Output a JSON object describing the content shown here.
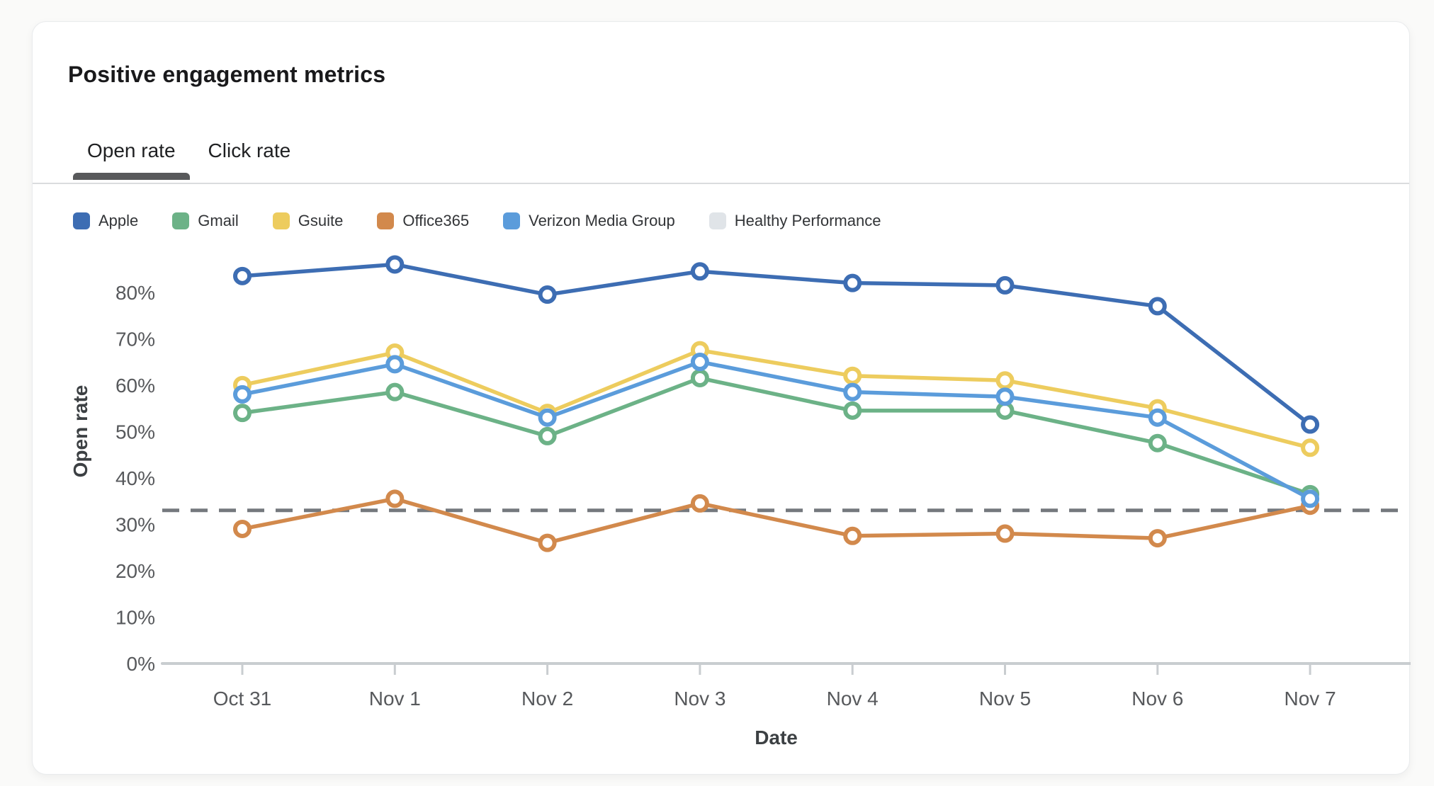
{
  "card": {
    "title": "Positive engagement metrics"
  },
  "tabs": [
    {
      "label": "Open rate",
      "active": true
    },
    {
      "label": "Click rate",
      "active": false
    }
  ],
  "chart_data": {
    "type": "line",
    "title": "Positive engagement metrics",
    "xlabel": "Date",
    "ylabel": "Open rate",
    "categories": [
      "Oct 31",
      "Nov 1",
      "Nov 2",
      "Nov 3",
      "Nov 4",
      "Nov 5",
      "Nov 6",
      "Nov 7"
    ],
    "ylim": [
      0,
      90
    ],
    "y_ticks": [
      0,
      10,
      20,
      30,
      40,
      50,
      60,
      70,
      80
    ],
    "y_tick_suffix": "%",
    "grid": false,
    "legend_position": "top",
    "axis_color": "#c9cdd0",
    "series": [
      {
        "name": "Apple",
        "color": "#3d6db3",
        "style": "solid",
        "values": [
          83.5,
          86,
          79.5,
          84.5,
          82,
          81.5,
          77,
          51.5
        ]
      },
      {
        "name": "Gmail",
        "color": "#6cb287",
        "style": "solid",
        "values": [
          54,
          58.5,
          49,
          61.5,
          54.5,
          54.5,
          47.5,
          36.5
        ]
      },
      {
        "name": "Gsuite",
        "color": "#edcc5e",
        "style": "solid",
        "values": [
          60,
          67,
          54,
          67.5,
          62,
          61,
          55,
          46.5
        ]
      },
      {
        "name": "Office365",
        "color": "#d2894c",
        "style": "solid",
        "values": [
          29,
          35.5,
          26,
          34.5,
          27.5,
          28,
          27,
          34
        ]
      },
      {
        "name": "Verizon Media Group",
        "color": "#5b9cdb",
        "style": "solid",
        "values": [
          58,
          64.5,
          53,
          65,
          58.5,
          57.5,
          53,
          35.5
        ]
      },
      {
        "name": "Healthy Performance",
        "color": "#75797e",
        "swatch_color": "#e0e4e8",
        "style": "dashed",
        "values": [
          33,
          33,
          33,
          33,
          33,
          33,
          33,
          33
        ]
      }
    ]
  }
}
